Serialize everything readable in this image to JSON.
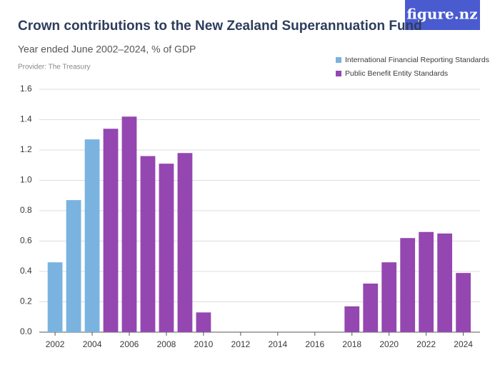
{
  "logo": "figure.nz",
  "chart_data": {
    "type": "bar",
    "title": "Crown contributions to the New Zealand Superannuation Fund",
    "subtitle": "Year ended June 2002–2024, % of GDP",
    "provider": "Provider: The Treasury",
    "x": [
      2002,
      2003,
      2004,
      2005,
      2006,
      2007,
      2008,
      2009,
      2010,
      2011,
      2012,
      2013,
      2014,
      2015,
      2016,
      2017,
      2018,
      2019,
      2020,
      2021,
      2022,
      2023,
      2024
    ],
    "series": [
      {
        "name": "International Financial Reporting Standards",
        "color": "#7ab3e0",
        "values": [
          0.46,
          0.87,
          1.27,
          null,
          null,
          null,
          null,
          null,
          null,
          null,
          null,
          null,
          null,
          null,
          null,
          null,
          null,
          null,
          null,
          null,
          null,
          null,
          null
        ]
      },
      {
        "name": "Public Benefit Entity Standards",
        "color": "#9447b0",
        "values": [
          null,
          null,
          null,
          1.34,
          1.42,
          1.16,
          1.11,
          1.18,
          0.13,
          0,
          0,
          0,
          0,
          0,
          0,
          0,
          0.17,
          0.32,
          0.46,
          0.62,
          0.66,
          0.65,
          0.39
        ]
      }
    ],
    "xlim": [
      2001.15,
      2024.9
    ],
    "xticks": [
      2002,
      2004,
      2006,
      2008,
      2010,
      2012,
      2014,
      2016,
      2018,
      2020,
      2022,
      2024
    ],
    "ylim": [
      0,
      1.6
    ],
    "yticks": [
      {
        "value": 0,
        "label": "0.0"
      },
      0.2,
      0.4,
      0.6,
      0.8,
      {
        "value": 1,
        "label": "1.0"
      },
      1.2,
      1.4,
      1.6
    ],
    "grid": true,
    "legend": "top-right"
  }
}
